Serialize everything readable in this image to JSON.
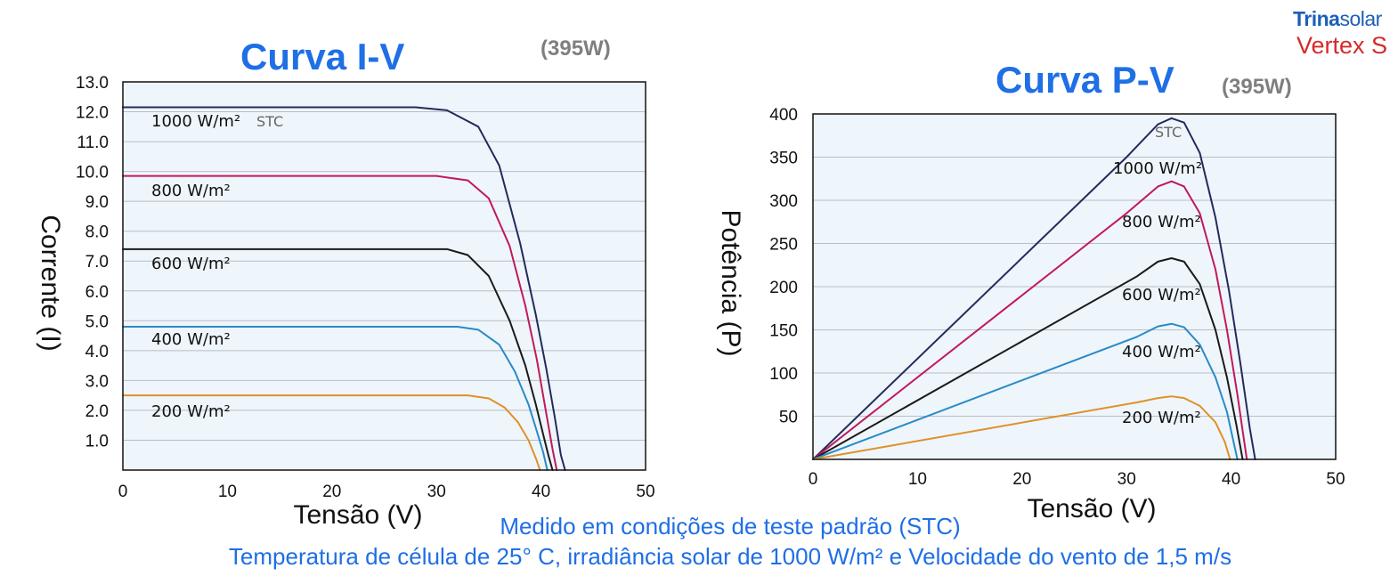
{
  "logo": {
    "brand_bold": "Trina",
    "brand_light": "solar",
    "product": "Vertex S"
  },
  "footer": {
    "line1": "Medido em condições de teste padrão (STC)",
    "line2": "Temperatura de célula de 25° C, irradiância solar de 1000 W/m² e Velocidade do vento de 1,5 m/s"
  },
  "chart_data": [
    {
      "type": "line",
      "title": "Curva I-V",
      "subtitle": "(395W)",
      "xlabel": "Tensão (V)",
      "ylabel": "Corrente (I)",
      "xlim": [
        0,
        50
      ],
      "ylim": [
        0,
        13
      ],
      "xticks": [
        0,
        10,
        20,
        30,
        40,
        50
      ],
      "xtick_labels": [
        "0",
        "10",
        "20",
        "30",
        "40",
        "50"
      ],
      "yticks": [
        1,
        2,
        3,
        4,
        5,
        6,
        7,
        8,
        9,
        10,
        11,
        12,
        13
      ],
      "ytick_labels": [
        "1.0",
        "2.0",
        "3.0",
        "4.0",
        "5.0",
        "6.0",
        "7.0",
        "8.0",
        "9.0",
        "10.0",
        "11.0",
        "12.0",
        "13.0"
      ],
      "grid": true,
      "stc_label": "STC",
      "series": [
        {
          "name": "1000 W/m²",
          "color": "#242a5e",
          "x": [
            0,
            28,
            31,
            34,
            36,
            38,
            39.5,
            40.5,
            41.3,
            41.9,
            42.3
          ],
          "y": [
            12.15,
            12.15,
            12.05,
            11.5,
            10.2,
            7.6,
            5.2,
            3.4,
            1.8,
            0.5,
            0
          ]
        },
        {
          "name": "800 W/m²",
          "color": "#c2185b",
          "x": [
            0,
            30,
            33,
            35,
            37,
            38.5,
            39.6,
            40.4,
            41.1,
            41.5
          ],
          "y": [
            9.85,
            9.85,
            9.7,
            9.1,
            7.5,
            5.5,
            3.7,
            2.1,
            0.7,
            0
          ]
        },
        {
          "name": "600 W/m²",
          "color": "#1a1a1a",
          "x": [
            0,
            31,
            33,
            35,
            37,
            38.5,
            39.5,
            40.2,
            40.7,
            41.1
          ],
          "y": [
            7.4,
            7.4,
            7.2,
            6.5,
            5.0,
            3.5,
            2.2,
            1.2,
            0.5,
            0
          ]
        },
        {
          "name": "400 W/m²",
          "color": "#2a8ac8",
          "x": [
            0,
            32,
            34,
            36,
            37.5,
            38.8,
            39.6,
            40.2,
            40.6
          ],
          "y": [
            4.8,
            4.8,
            4.7,
            4.2,
            3.3,
            2.2,
            1.3,
            0.6,
            0
          ]
        },
        {
          "name": "200 W/m²",
          "color": "#e0902a",
          "x": [
            0,
            33,
            35,
            36.5,
            37.8,
            38.8,
            39.5,
            39.9
          ],
          "y": [
            2.5,
            2.5,
            2.4,
            2.1,
            1.6,
            1.0,
            0.4,
            0
          ]
        }
      ]
    },
    {
      "type": "line",
      "title": "Curva P-V",
      "subtitle": "(395W)",
      "xlabel": "Tensão (V)",
      "ylabel": "Potência (P)",
      "xlim": [
        0,
        50
      ],
      "ylim": [
        0,
        400
      ],
      "xticks": [
        0,
        10,
        20,
        30,
        40,
        50
      ],
      "xtick_labels": [
        "0",
        "10",
        "20",
        "30",
        "40",
        "50"
      ],
      "yticks": [
        50,
        100,
        150,
        200,
        250,
        300,
        350,
        400
      ],
      "ytick_labels": [
        "50",
        "100",
        "150",
        "200",
        "250",
        "300",
        "350",
        "400"
      ],
      "grid": true,
      "stc_label": "STC",
      "series": [
        {
          "name": "1000 W/m²",
          "color": "#242a5e",
          "x": [
            0,
            30,
            33,
            34.3,
            35.5,
            37,
            38.5,
            39.8,
            40.9,
            41.8,
            42.3
          ],
          "y": [
            0,
            350,
            388,
            395,
            390,
            355,
            280,
            195,
            110,
            35,
            0
          ]
        },
        {
          "name": "800 W/m²",
          "color": "#c2185b",
          "x": [
            0,
            30,
            33,
            34.3,
            35.5,
            37,
            38.5,
            39.6,
            40.6,
            41.5
          ],
          "y": [
            0,
            285,
            316,
            322,
            316,
            285,
            220,
            150,
            75,
            0
          ]
        },
        {
          "name": "600 W/m²",
          "color": "#1a1a1a",
          "x": [
            0,
            31,
            33,
            34.3,
            35.5,
            37,
            38.5,
            39.6,
            40.5,
            41.1
          ],
          "y": [
            0,
            212,
            229,
            233,
            229,
            203,
            150,
            95,
            40,
            0
          ]
        },
        {
          "name": "400 W/m²",
          "color": "#2a8ac8",
          "x": [
            0,
            31,
            33,
            34.3,
            35.5,
            37,
            38.5,
            39.6,
            40.6
          ],
          "y": [
            0,
            142,
            154,
            157,
            153,
            133,
            95,
            55,
            0
          ]
        },
        {
          "name": "200 W/m²",
          "color": "#e0902a",
          "x": [
            0,
            31,
            33,
            34.3,
            35.5,
            37,
            38.5,
            39.4,
            39.9
          ],
          "y": [
            0,
            66,
            71,
            73,
            71,
            62,
            43,
            20,
            0
          ]
        }
      ]
    }
  ]
}
